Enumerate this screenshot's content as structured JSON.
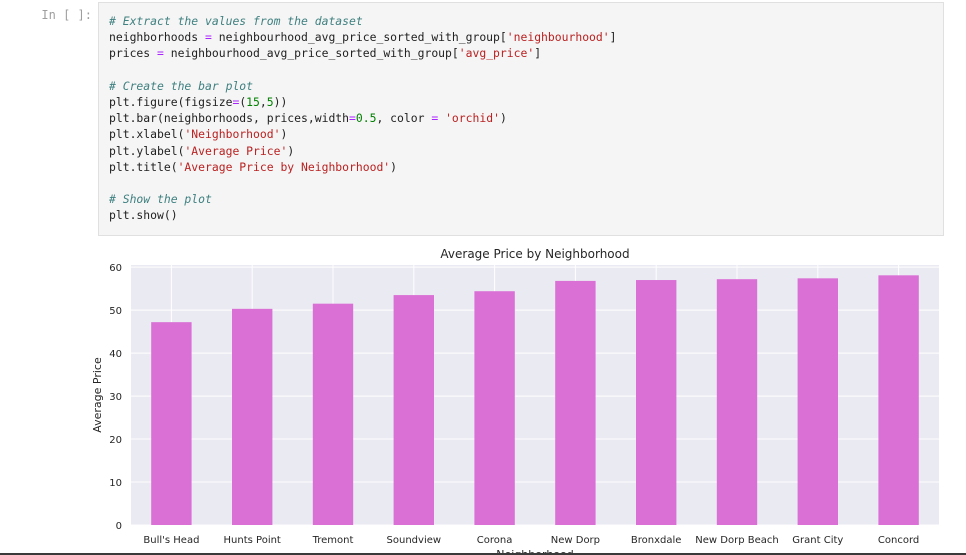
{
  "cell": {
    "prompt": "In [ ]:",
    "code_lines": [
      [
        {
          "t": "# Extract the values from the dataset",
          "c": "cm"
        }
      ],
      [
        {
          "t": "neighborhoods "
        },
        {
          "t": "=",
          "c": "op"
        },
        {
          "t": " neighbourhood_avg_price_sorted_with_group["
        },
        {
          "t": "'neighbourhood'",
          "c": "st"
        },
        {
          "t": "]"
        }
      ],
      [
        {
          "t": "prices "
        },
        {
          "t": "=",
          "c": "op"
        },
        {
          "t": " neighbourhood_avg_price_sorted_with_group["
        },
        {
          "t": "'avg_price'",
          "c": "st"
        },
        {
          "t": "]"
        }
      ],
      [
        {
          "t": ""
        }
      ],
      [
        {
          "t": "# Create the bar plot",
          "c": "cm"
        }
      ],
      [
        {
          "t": "plt.figure(figsize"
        },
        {
          "t": "=",
          "c": "op"
        },
        {
          "t": "("
        },
        {
          "t": "15",
          "c": "nm"
        },
        {
          "t": ","
        },
        {
          "t": "5",
          "c": "nm"
        },
        {
          "t": "))"
        }
      ],
      [
        {
          "t": "plt.bar(neighborhoods, prices,width"
        },
        {
          "t": "=",
          "c": "op"
        },
        {
          "t": "0.5",
          "c": "nm"
        },
        {
          "t": ", color "
        },
        {
          "t": "=",
          "c": "op"
        },
        {
          "t": " "
        },
        {
          "t": "'orchid'",
          "c": "st"
        },
        {
          "t": ")"
        }
      ],
      [
        {
          "t": "plt.xlabel("
        },
        {
          "t": "'Neighborhood'",
          "c": "st"
        },
        {
          "t": ")"
        }
      ],
      [
        {
          "t": "plt.ylabel("
        },
        {
          "t": "'Average Price'",
          "c": "st"
        },
        {
          "t": ")"
        }
      ],
      [
        {
          "t": "plt.title("
        },
        {
          "t": "'Average Price by Neighborhood'",
          "c": "st"
        },
        {
          "t": ")"
        }
      ],
      [
        {
          "t": ""
        }
      ],
      [
        {
          "t": "# Show the plot",
          "c": "cm"
        }
      ],
      [
        {
          "t": "plt.show()"
        }
      ]
    ]
  },
  "chart_data": {
    "type": "bar",
    "title": "Average Price by Neighborhood",
    "xlabel": "Neighborhood",
    "ylabel": "Average Price",
    "categories": [
      "Bull's Head",
      "Hunts Point",
      "Tremont",
      "Soundview",
      "Corona",
      "New Dorp",
      "Bronxdale",
      "New Dorp Beach",
      "Grant City",
      "Concord"
    ],
    "values": [
      47.2,
      50.3,
      51.5,
      53.5,
      54.4,
      56.8,
      57.0,
      57.2,
      57.4,
      58.1
    ],
    "ylim": [
      0,
      60.5
    ],
    "yticks": [
      0,
      10,
      20,
      30,
      40,
      50,
      60
    ],
    "bar_color": "#da70d6",
    "grid": true,
    "background": "#eaeaf2"
  }
}
